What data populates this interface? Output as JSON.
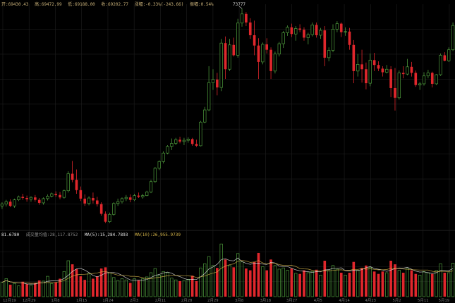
{
  "colors": {
    "background": "#000000",
    "up": "#4e9a3c",
    "down": "#e0272c",
    "grid": "#1e1e1e",
    "axis_text": "#7a7a7a",
    "ohlc_text": "#c8b078",
    "ma5": "#e8e8e8",
    "ma10": "#d9b84a",
    "volume_label": "#8a8a8a"
  },
  "header": {
    "open": "开:69430.43",
    "high": "高:69472.99",
    "low": "低:69188.00",
    "close": "收:69202.77",
    "change": "涨幅:-0.33%(-243.66)",
    "amplitude": "振幅:0.54%"
  },
  "volume_legend": {
    "value": "81.6780",
    "label": "成交量均值:28,117.8752",
    "ma5": "MA(5):15,284.7893",
    "ma10": "MA(10):26,955.9739"
  },
  "chart_data": {
    "type": "candlestick",
    "title": "",
    "price_axis": {
      "min": 37500,
      "max": 74500
    },
    "max_price_label": "73777",
    "x_tick_labels": [
      "12月19",
      "12月29",
      "1月8",
      "1月15",
      "1月24",
      "2月3",
      "2月11",
      "2月20",
      "2月29",
      "3月8",
      "3月18",
      "3月27",
      "4月5",
      "4月14",
      "4月23",
      "5月2",
      "5月11",
      "5月19"
    ],
    "candles": [
      [
        41300,
        41900,
        40800,
        41600
      ],
      [
        41600,
        42300,
        41200,
        42000
      ],
      [
        42000,
        42400,
        41100,
        41300
      ],
      [
        41300,
        42500,
        41000,
        42300
      ],
      [
        42300,
        43000,
        42100,
        42800
      ],
      [
        42800,
        43300,
        42300,
        42600
      ],
      [
        42600,
        43000,
        42000,
        42400
      ],
      [
        42400,
        42900,
        42000,
        42700
      ],
      [
        42700,
        43100,
        42000,
        42300
      ],
      [
        42300,
        42600,
        41500,
        41800
      ],
      [
        41800,
        42700,
        41500,
        42500
      ],
      [
        42500,
        43200,
        42200,
        42900
      ],
      [
        42900,
        43500,
        42700,
        43300
      ],
      [
        43300,
        43700,
        42800,
        43100
      ],
      [
        43100,
        43600,
        42400,
        42700
      ],
      [
        42700,
        44000,
        42500,
        43800
      ],
      [
        43800,
        47000,
        43500,
        46600
      ],
      [
        46600,
        48700,
        45200,
        45600
      ],
      [
        45600,
        47300,
        43300,
        43900
      ],
      [
        43900,
        44500,
        42100,
        42500
      ],
      [
        42500,
        43200,
        41300,
        41700
      ],
      [
        41700,
        42900,
        41400,
        42600
      ],
      [
        42600,
        43500,
        41700,
        42200
      ],
      [
        42200,
        42800,
        41200,
        41600
      ],
      [
        41600,
        41900,
        39700,
        40000
      ],
      [
        40000,
        40400,
        38500,
        38700
      ],
      [
        38700,
        40200,
        38500,
        39900
      ],
      [
        39900,
        41900,
        39700,
        41700
      ],
      [
        41700,
        42500,
        41300,
        42000
      ],
      [
        42000,
        42700,
        41700,
        42500
      ],
      [
        42500,
        43100,
        42100,
        42700
      ],
      [
        42700,
        43200,
        41900,
        42300
      ],
      [
        42300,
        43300,
        42100,
        43000
      ],
      [
        43000,
        43500,
        42600,
        42800
      ],
      [
        42800,
        43300,
        42500,
        43000
      ],
      [
        43000,
        43800,
        42900,
        43600
      ],
      [
        43600,
        45600,
        43400,
        45300
      ],
      [
        45300,
        47700,
        45100,
        47500
      ],
      [
        47500,
        48800,
        47200,
        48600
      ],
      [
        48600,
        50300,
        48300,
        50000
      ],
      [
        50000,
        51300,
        49800,
        51100
      ],
      [
        51100,
        52400,
        50500,
        51600
      ],
      [
        51600,
        52500,
        51300,
        52200
      ],
      [
        52200,
        52700,
        51600,
        51900
      ],
      [
        51900,
        52500,
        51300,
        52100
      ],
      [
        52100,
        52600,
        51700,
        52300
      ],
      [
        52300,
        52500,
        51200,
        51500
      ],
      [
        51500,
        52200,
        51000,
        51200
      ],
      [
        51200,
        55300,
        51100,
        55100
      ],
      [
        55100,
        57600,
        54900,
        57100
      ],
      [
        57100,
        64300,
        56900,
        61600
      ],
      [
        61600,
        63800,
        60400,
        62100
      ],
      [
        62100,
        63200,
        59500,
        60800
      ],
      [
        60800,
        68800,
        60200,
        68100
      ],
      [
        68100,
        69200,
        62200,
        63800
      ],
      [
        63800,
        68800,
        63500,
        67800
      ],
      [
        67800,
        69000,
        65900,
        66100
      ],
      [
        66100,
        72100,
        65700,
        71400
      ],
      [
        71400,
        73800,
        70800,
        72900
      ],
      [
        72900,
        73200,
        70900,
        71500
      ],
      [
        71500,
        72200,
        68800,
        69400
      ],
      [
        69400,
        71800,
        66100,
        67700
      ],
      [
        67700,
        68900,
        62200,
        65000
      ],
      [
        65000,
        68200,
        64600,
        67900
      ],
      [
        67900,
        68900,
        66400,
        67000
      ],
      [
        67000,
        67400,
        62200,
        63500
      ],
      [
        63500,
        66700,
        63100,
        66300
      ],
      [
        66300,
        68300,
        65900,
        68000
      ],
      [
        68000,
        70100,
        67300,
        69800
      ],
      [
        69800,
        71000,
        69300,
        70700
      ],
      [
        70700,
        71300,
        69100,
        69600
      ],
      [
        69600,
        70900,
        68500,
        70500
      ],
      [
        70500,
        71200,
        69900,
        70300
      ],
      [
        70300,
        70700,
        68500,
        69000
      ],
      [
        69000,
        69800,
        67900,
        69500
      ],
      [
        69500,
        71500,
        69200,
        71100
      ],
      [
        71100,
        71500,
        69000,
        69400
      ],
      [
        69400,
        70600,
        68800,
        70200
      ],
      [
        70200,
        70900,
        64300,
        65700
      ],
      [
        65700,
        67400,
        65100,
        66900
      ],
      [
        66900,
        71200,
        66600,
        70400
      ],
      [
        70400,
        71700,
        69900,
        71300
      ],
      [
        71300,
        71500,
        69100,
        69900
      ],
      [
        69900,
        70700,
        69300,
        70000
      ],
      [
        70000,
        70600,
        67000,
        67800
      ],
      [
        67800,
        68600,
        61500,
        63500
      ],
      [
        63500,
        66300,
        62600,
        64600
      ],
      [
        64600,
        67000,
        61600,
        63800
      ],
      [
        63800,
        64900,
        60500,
        61500
      ],
      [
        61500,
        66400,
        61000,
        65300
      ],
      [
        65300,
        66500,
        63500,
        64500
      ],
      [
        64500,
        65100,
        63500,
        63900
      ],
      [
        63900,
        64300,
        62600,
        63300
      ],
      [
        63300,
        64500,
        63100,
        63800
      ],
      [
        63800,
        64300,
        59200,
        60700
      ],
      [
        60700,
        64000,
        57000,
        59100
      ],
      [
        59100,
        63600,
        58800,
        63200
      ],
      [
        63200,
        64300,
        62300,
        63000
      ],
      [
        63000,
        65500,
        62800,
        64200
      ],
      [
        64200,
        65000,
        62600,
        63200
      ],
      [
        63200,
        63600,
        60900,
        61200
      ],
      [
        61200,
        61700,
        60400,
        61400
      ],
      [
        61400,
        63300,
        61100,
        62700
      ],
      [
        62700,
        63700,
        62300,
        63200
      ],
      [
        63200,
        63400,
        60800,
        61400
      ],
      [
        61400,
        63000,
        61200,
        62900
      ],
      [
        62900,
        66400,
        62700,
        66100
      ],
      [
        66100,
        66600,
        65100,
        65200
      ],
      [
        65200,
        67400,
        65000,
        67000
      ],
      [
        67000,
        71500,
        66800,
        71000
      ]
    ],
    "volume_axis": {
      "min": 0,
      "max": 100
    },
    "volumes": [
      24,
      30,
      20,
      22,
      18,
      25,
      21,
      19,
      23,
      27,
      26,
      34,
      22,
      24,
      30,
      42,
      60,
      54,
      46,
      34,
      28,
      39,
      30,
      34,
      47,
      49,
      40,
      32,
      27,
      30,
      28,
      23,
      30,
      27,
      30,
      33,
      40,
      47,
      36,
      42,
      40,
      31,
      28,
      26,
      27,
      29,
      35,
      26,
      48,
      55,
      67,
      52,
      48,
      88,
      62,
      52,
      49,
      72,
      58,
      47,
      44,
      58,
      73,
      50,
      44,
      62,
      52,
      46,
      48,
      44,
      47,
      39,
      38,
      44,
      40,
      42,
      45,
      36,
      60,
      43,
      52,
      46,
      40,
      36,
      40,
      58,
      44,
      48,
      52,
      49,
      42,
      38,
      42,
      40,
      60,
      54,
      44,
      40,
      47,
      44,
      38,
      36,
      42,
      40,
      38,
      44,
      55,
      40,
      40,
      56
    ]
  }
}
